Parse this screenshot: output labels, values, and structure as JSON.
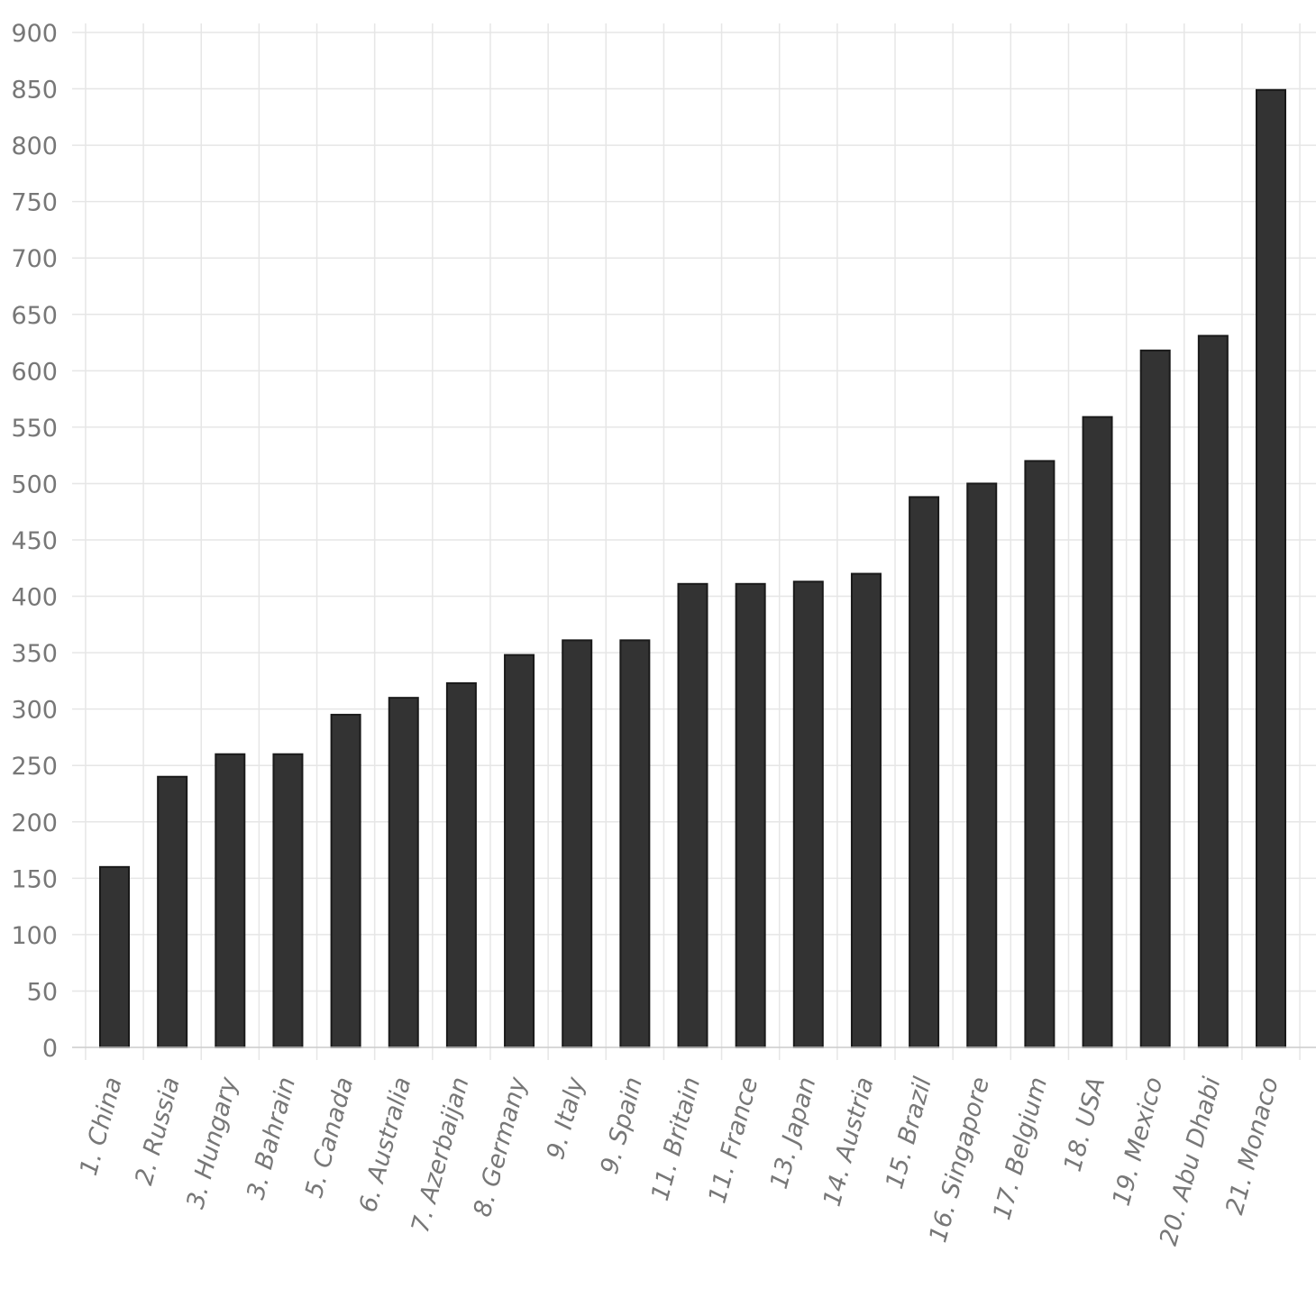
{
  "chart_data": {
    "type": "bar",
    "categories": [
      "1. China",
      "2. Russia",
      "3. Hungary",
      "3. Bahrain",
      "5. Canada",
      "6. Australia",
      "7. Azerbaijan",
      "8. Germany",
      "9. Italy",
      "9. Spain",
      "11. Britain",
      "11. France",
      "13. Japan",
      "14. Austria",
      "15. Brazil",
      "16. Singapore",
      "17. Belgium",
      "18. USA",
      "19. Mexico",
      "20. Abu Dhabi",
      "21. Monaco"
    ],
    "values": [
      160,
      240,
      260,
      260,
      295,
      310,
      323,
      348,
      361,
      361,
      411,
      411,
      413,
      420,
      488,
      500,
      520,
      559,
      618,
      631,
      849
    ],
    "title": "",
    "xlabel": "",
    "ylabel": "",
    "ylim": [
      0,
      900
    ],
    "yticks": [
      0,
      50,
      100,
      150,
      200,
      250,
      300,
      350,
      400,
      450,
      500,
      550,
      600,
      650,
      700,
      750,
      800,
      850,
      900
    ],
    "grid": true,
    "legend": "none",
    "bar_color": "#333333",
    "grid_color": "#e6e6e6",
    "tick_label_color": "#777777"
  }
}
